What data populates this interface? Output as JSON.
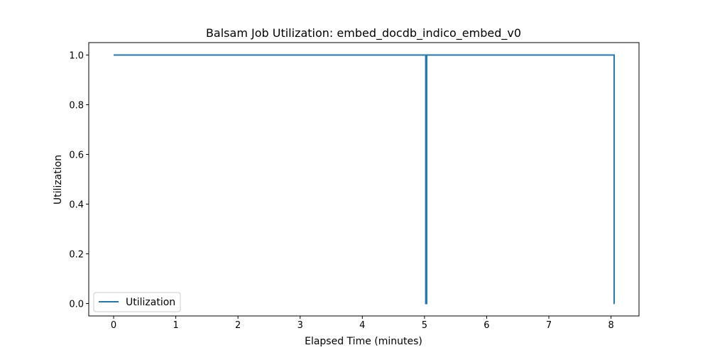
{
  "chart_data": {
    "type": "line",
    "title": "Balsam Job Utilization: embed_docdb_indico_embed_v0",
    "xlabel": "Elapsed Time (minutes)",
    "ylabel": "Utilization",
    "xlim": [
      -0.4,
      8.45
    ],
    "ylim": [
      -0.05,
      1.05
    ],
    "xticks": [
      0,
      1,
      2,
      3,
      4,
      5,
      6,
      7,
      8
    ],
    "xtick_labels": [
      "0",
      "1",
      "2",
      "3",
      "4",
      "5",
      "6",
      "7",
      "8"
    ],
    "yticks": [
      0.0,
      0.2,
      0.4,
      0.6,
      0.8,
      1.0
    ],
    "ytick_labels": [
      "0.0",
      "0.2",
      "0.4",
      "0.6",
      "0.8",
      "1.0"
    ],
    "grid": false,
    "legend": {
      "position": "lower-left"
    },
    "series": [
      {
        "name": "Utilization",
        "color": "#1f77b4",
        "drawstyle": "steps-post",
        "x": [
          0.0,
          5.02,
          5.025,
          5.03,
          5.035,
          8.05,
          8.055
        ],
        "y": [
          1,
          0,
          1,
          0,
          1,
          0,
          0
        ]
      }
    ]
  }
}
